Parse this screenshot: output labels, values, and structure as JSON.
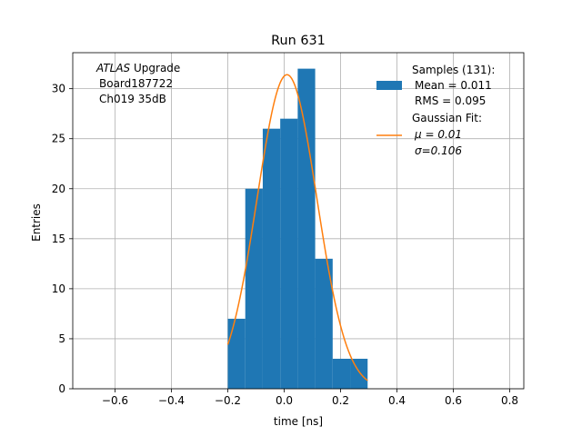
{
  "chart_data": {
    "type": "bar",
    "title": "Run 631",
    "xlabel": "time [ns]",
    "ylabel": "Entries",
    "xlim": [
      -0.75,
      0.85
    ],
    "ylim": [
      0,
      33.6
    ],
    "grid": true,
    "xticks": [
      -0.6,
      -0.4,
      -0.2,
      0.0,
      0.2,
      0.4,
      0.6,
      0.8
    ],
    "xtick_labels": [
      "−0.6",
      "−0.4",
      "−0.2",
      "0.0",
      "0.2",
      "0.4",
      "0.6",
      "0.8"
    ],
    "yticks": [
      0,
      5,
      10,
      15,
      20,
      25,
      30
    ],
    "ytick_labels": [
      "0",
      "5",
      "10",
      "15",
      "20",
      "25",
      "30"
    ],
    "histogram": {
      "name": "Samples (131):",
      "color": "#1f77b4",
      "bin_edges": [
        -0.2,
        -0.138,
        -0.076,
        -0.014,
        0.048,
        0.11,
        0.172,
        0.234,
        0.296
      ],
      "counts": [
        7,
        20,
        26,
        27,
        32,
        13,
        3,
        3
      ]
    },
    "fit": {
      "name": "Gaussian Fit:",
      "color": "#ff7f0e",
      "mu": 0.01,
      "sigma": 0.106,
      "amplitude": 31.4,
      "x_range": [
        -0.2,
        0.296
      ]
    },
    "annotation": {
      "italic": "ATLAS",
      "rest": " Upgrade",
      "line2": "Board187722",
      "line3": "Ch019 35dB"
    },
    "legend": {
      "position": "top-right",
      "hist_lines": [
        "Samples (131):",
        "Mean = 0.011",
        "RMS = 0.095"
      ],
      "fit_lines": [
        "Gaussian Fit:",
        "μ = 0.01",
        "σ=0.106"
      ]
    }
  }
}
